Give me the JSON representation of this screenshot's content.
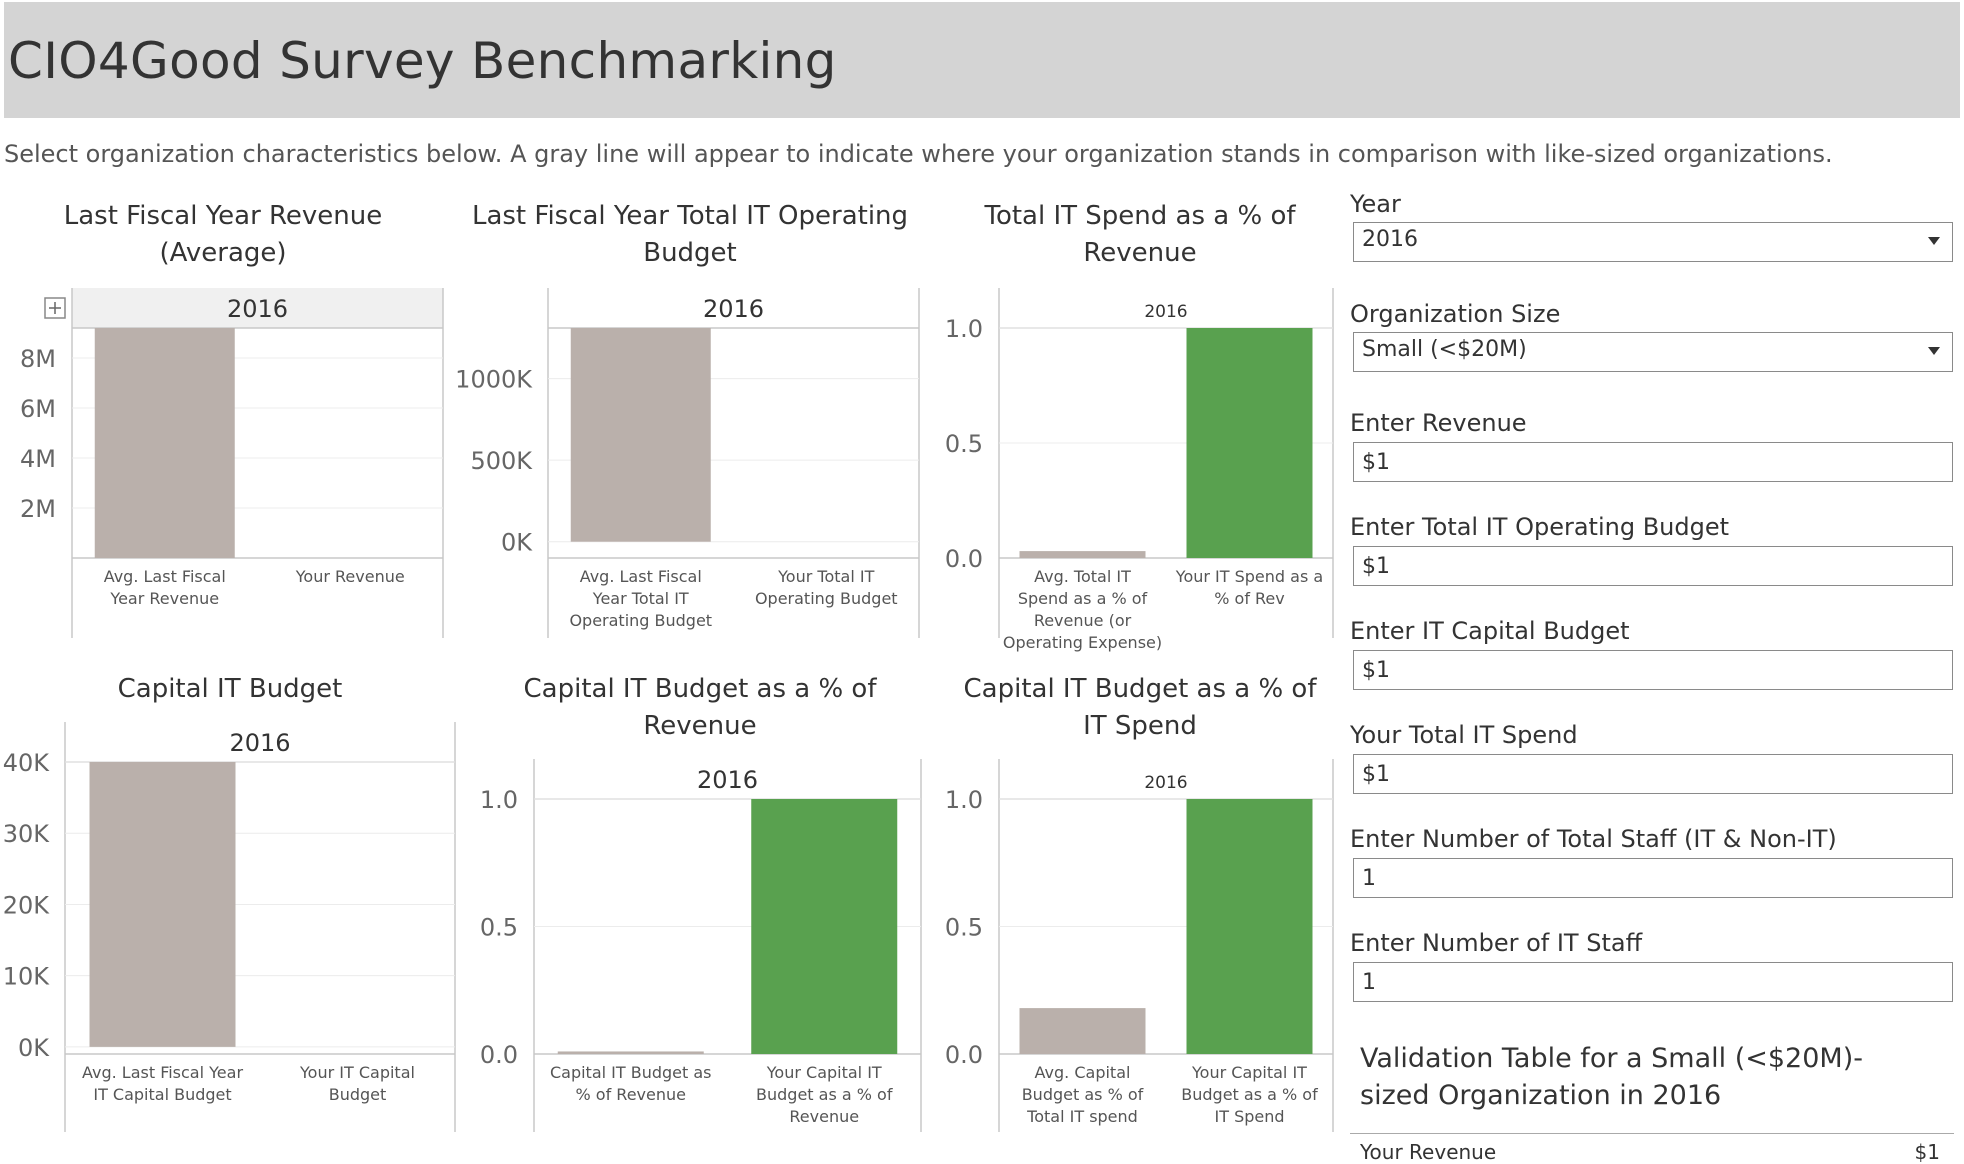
{
  "header": {
    "title": "CIO4Good Survey Benchmarking",
    "subtitle": "Select organization characteristics below. A gray line will appear to indicate where your organization stands in comparison with like-sized organizations."
  },
  "colors": {
    "header_bg": "#d4d4d4",
    "avg_bar": "#bab0ab",
    "your_bar": "#59a14f",
    "axis": "#c8c8c8",
    "text": "#333333"
  },
  "controls": {
    "year": {
      "label": "Year",
      "value": "2016"
    },
    "org_size": {
      "label": "Organization Size",
      "value": "Small (<$20M)"
    },
    "revenue": {
      "label": "Enter Revenue",
      "value": "$1"
    },
    "it_operating_budget": {
      "label": "Enter Total IT Operating Budget",
      "value": "$1"
    },
    "it_capital_budget": {
      "label": "Enter IT Capital Budget",
      "value": "$1"
    },
    "total_it_spend": {
      "label": "Your Total IT Spend",
      "value": "$1"
    },
    "total_staff": {
      "label": "Enter Number of Total Staff (IT & Non-IT)",
      "value": "1"
    },
    "it_staff": {
      "label": "Enter Number of IT Staff",
      "value": "1"
    }
  },
  "validation": {
    "title": "Validation Table for a Small (<$20M)-sized Organization in 2016",
    "rows": [
      {
        "label": "Your Revenue",
        "value": "$1"
      }
    ]
  },
  "chart_data": [
    {
      "type": "bar",
      "title": "Last Fiscal Year Revenue (Average)",
      "column_header": "2016",
      "categories": [
        "Avg. Last Fiscal Year Revenue",
        "Your Revenue"
      ],
      "values": [
        9200000,
        1
      ],
      "ylim": [
        0,
        9200000
      ],
      "yticks": [
        2000000,
        4000000,
        6000000,
        8000000
      ],
      "yticklabels": [
        "2M",
        "4M",
        "6M",
        "8M"
      ]
    },
    {
      "type": "bar",
      "title": "Last Fiscal Year Total IT Operating Budget",
      "column_header": "2016",
      "categories": [
        "Avg. Last Fiscal Year Total IT Operating Budget",
        "Your Total IT Operating Budget"
      ],
      "values": [
        1310000,
        1
      ],
      "ylim": [
        -100000,
        1310000
      ],
      "yticks": [
        0,
        500000,
        1000000
      ],
      "yticklabels": [
        "0K",
        "500K",
        "1000K"
      ]
    },
    {
      "type": "bar",
      "title": "Total IT Spend as a % of Revenue",
      "column_header": "2016",
      "categories": [
        "Avg. Total IT Spend as a % of Revenue (or Operating Expense)",
        "Your IT Spend as a % of Rev"
      ],
      "values": [
        0.03,
        1.0
      ],
      "ylim": [
        0,
        1.0
      ],
      "yticks": [
        0.0,
        0.5,
        1.0
      ],
      "yticklabels": [
        "0.0",
        "0.5",
        "1.0"
      ]
    },
    {
      "type": "bar",
      "title": "Capital IT Budget",
      "column_header": "2016",
      "categories": [
        "Avg. Last Fiscal Year IT Capital Budget",
        "Your IT Capital Budget"
      ],
      "values": [
        40000,
        1
      ],
      "ylim": [
        -1000,
        40000
      ],
      "yticks": [
        0,
        10000,
        20000,
        30000,
        40000
      ],
      "yticklabels": [
        "0K",
        "10K",
        "20K",
        "30K",
        "40K"
      ]
    },
    {
      "type": "bar",
      "title": "Capital IT Budget as a % of Revenue",
      "column_header": "2016",
      "categories": [
        "Capital IT Budget as % of Revenue",
        "Your Capital IT Budget as a % of Revenue"
      ],
      "values": [
        0.01,
        1.0
      ],
      "ylim": [
        0,
        1.0
      ],
      "yticks": [
        0.0,
        0.5,
        1.0
      ],
      "yticklabels": [
        "0.0",
        "0.5",
        "1.0"
      ]
    },
    {
      "type": "bar",
      "title": "Capital IT Budget as a % of IT Spend",
      "column_header": "2016",
      "categories": [
        "Avg. Capital Budget as % of Total IT spend",
        "Your Capital IT Budget as a % of IT Spend"
      ],
      "values": [
        0.18,
        1.0
      ],
      "ylim": [
        0,
        1.0
      ],
      "yticks": [
        0.0,
        0.5,
        1.0
      ],
      "yticklabels": [
        "0.0",
        "0.5",
        "1.0"
      ]
    }
  ]
}
